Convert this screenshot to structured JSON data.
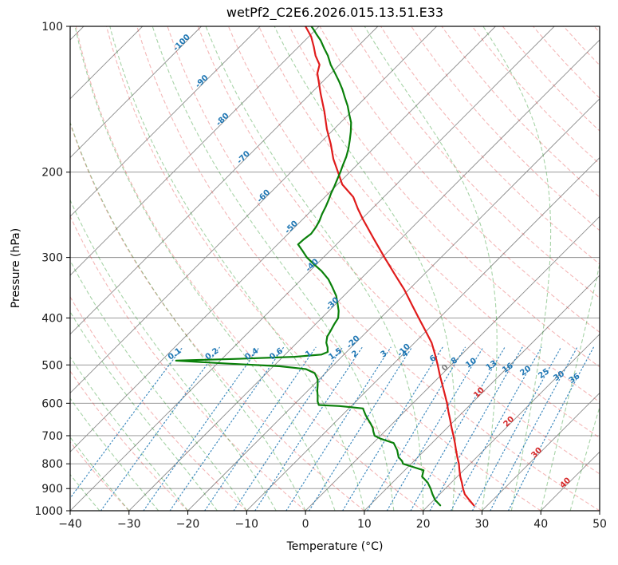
{
  "title": "wetPf2_C2E6.2026.015.13.51.E33",
  "axes": {
    "xlabel": "Temperature (°C)",
    "ylabel": "Pressure (hPa)",
    "xlim": [
      -40,
      50
    ],
    "pressure_lim": [
      1000,
      100
    ],
    "x_ticks": [
      -40,
      -30,
      -20,
      -10,
      0,
      10,
      20,
      30,
      40,
      50
    ],
    "p_ticks": [
      100,
      200,
      300,
      400,
      500,
      600,
      700,
      800,
      900,
      1000
    ]
  },
  "chart_data": {
    "type": "line",
    "subtype": "skew-t-log-p",
    "title": "wetPf2_C2E6.2026.015.13.51.E33",
    "xlabel": "Temperature (°C)",
    "ylabel": "Pressure (hPa)",
    "x_range": [
      -40,
      50
    ],
    "pressure_range": [
      100,
      1000
    ],
    "grid": "on",
    "series": [
      {
        "name": "temperature",
        "color": "#e01b1b",
        "units": [
          "hPa",
          "degC"
        ],
        "points": [
          [
            975,
            27.7
          ],
          [
            950,
            26.0
          ],
          [
            925,
            24.3
          ],
          [
            900,
            23.0
          ],
          [
            875,
            21.8
          ],
          [
            850,
            20.5
          ],
          [
            825,
            19.3
          ],
          [
            800,
            18.1
          ],
          [
            775,
            16.7
          ],
          [
            750,
            15.3
          ],
          [
            725,
            13.9
          ],
          [
            700,
            12.4
          ],
          [
            675,
            10.8
          ],
          [
            650,
            9.2
          ],
          [
            625,
            7.5
          ],
          [
            600,
            5.8
          ],
          [
            575,
            3.9
          ],
          [
            550,
            1.9
          ],
          [
            525,
            -0.2
          ],
          [
            500,
            -2.3
          ],
          [
            475,
            -4.6
          ],
          [
            450,
            -7.1
          ],
          [
            425,
            -10.2
          ],
          [
            400,
            -13.5
          ],
          [
            375,
            -17.0
          ],
          [
            350,
            -20.7
          ],
          [
            325,
            -25.0
          ],
          [
            300,
            -29.6
          ],
          [
            275,
            -34.5
          ],
          [
            250,
            -39.8
          ],
          [
            238,
            -42.4
          ],
          [
            225,
            -45.2
          ],
          [
            212,
            -49.2
          ],
          [
            200,
            -52.0
          ],
          [
            188,
            -55.0
          ],
          [
            175,
            -58.0
          ],
          [
            163,
            -61.2
          ],
          [
            150,
            -64.6
          ],
          [
            138,
            -68.2
          ],
          [
            125,
            -72.3
          ],
          [
            120,
            -73.4
          ],
          [
            115,
            -75.6
          ],
          [
            110,
            -77.5
          ],
          [
            105,
            -79.6
          ],
          [
            100,
            -82.3
          ]
        ]
      },
      {
        "name": "dewpoint",
        "color": "#0a800a",
        "units": [
          "hPa",
          "degC"
        ],
        "points": [
          [
            975,
            22.0
          ],
          [
            950,
            20.2
          ],
          [
            925,
            18.8
          ],
          [
            900,
            17.5
          ],
          [
            875,
            16.0
          ],
          [
            850,
            14.0
          ],
          [
            825,
            13.2
          ],
          [
            800,
            8.6
          ],
          [
            790,
            8.0
          ],
          [
            775,
            6.7
          ],
          [
            750,
            5.3
          ],
          [
            725,
            3.5
          ],
          [
            710,
            0.5
          ],
          [
            700,
            -1.0
          ],
          [
            685,
            -2.0
          ],
          [
            675,
            -2.6
          ],
          [
            660,
            -3.8
          ],
          [
            650,
            -4.7
          ],
          [
            635,
            -6.0
          ],
          [
            620,
            -7.2
          ],
          [
            615,
            -7.6
          ],
          [
            608,
            -12.0
          ],
          [
            605,
            -15.7
          ],
          [
            595,
            -16.5
          ],
          [
            580,
            -17.4
          ],
          [
            565,
            -18.4
          ],
          [
            550,
            -19.3
          ],
          [
            535,
            -20.3
          ],
          [
            520,
            -21.8
          ],
          [
            510,
            -24.0
          ],
          [
            503,
            -29.0
          ],
          [
            497,
            -38.0
          ],
          [
            490,
            -47.5
          ],
          [
            486,
            -38.0
          ],
          [
            481,
            -28.0
          ],
          [
            476,
            -23.8
          ],
          [
            470,
            -23.2
          ],
          [
            460,
            -24.0
          ],
          [
            450,
            -25.0
          ],
          [
            437,
            -25.9
          ],
          [
            425,
            -26.3
          ],
          [
            412,
            -26.8
          ],
          [
            400,
            -27.2
          ],
          [
            387,
            -28.3
          ],
          [
            373,
            -29.8
          ],
          [
            360,
            -31.3
          ],
          [
            345,
            -33.5
          ],
          [
            333,
            -35.4
          ],
          [
            320,
            -38.0
          ],
          [
            310,
            -40.4
          ],
          [
            300,
            -42.8
          ],
          [
            291,
            -44.6
          ],
          [
            282,
            -46.5
          ],
          [
            275,
            -46.4
          ],
          [
            268,
            -46.1
          ],
          [
            260,
            -46.4
          ],
          [
            252,
            -46.9
          ],
          [
            244,
            -47.6
          ],
          [
            236,
            -48.2
          ],
          [
            228,
            -48.9
          ],
          [
            221,
            -49.6
          ],
          [
            214,
            -50.2
          ],
          [
            207,
            -50.9
          ],
          [
            200,
            -51.6
          ],
          [
            194,
            -52.3
          ],
          [
            186,
            -53.2
          ],
          [
            179,
            -54.2
          ],
          [
            172,
            -55.4
          ],
          [
            165,
            -56.7
          ],
          [
            158,
            -58.2
          ],
          [
            152,
            -59.9
          ],
          [
            146,
            -61.6
          ],
          [
            140,
            -63.6
          ],
          [
            135,
            -65.3
          ],
          [
            130,
            -67.2
          ],
          [
            125,
            -69.3
          ],
          [
            120,
            -71.5
          ],
          [
            115,
            -73.5
          ],
          [
            111,
            -75.4
          ],
          [
            107,
            -77.3
          ],
          [
            104,
            -79.0
          ],
          [
            102,
            -80.1
          ],
          [
            100,
            -81.3
          ]
        ]
      }
    ],
    "background_lines": {
      "isotherms": {
        "from": -130,
        "to": 50,
        "step": 10,
        "color": "#8c8c8c"
      },
      "dry_adiabats": {
        "from": -60,
        "to": 190,
        "step": 10,
        "color": "#e03030",
        "opacity": 0.35,
        "style": "dashed"
      },
      "moist_adiabats": {
        "from": -40,
        "to": 45,
        "step": 5,
        "color": "#008000",
        "opacity": 0.35,
        "style": "dashed"
      },
      "mixing_ratio": {
        "values": [
          0.1,
          0.2,
          0.4,
          0.6,
          1,
          1.5,
          2,
          3,
          4,
          6,
          8,
          10,
          13,
          16,
          20,
          25,
          30,
          36
        ],
        "color": "#1f77b4",
        "opacity": 0.85,
        "style": "dotted",
        "p_bottom": 1000,
        "p_top": 460
      }
    },
    "line_labels": {
      "isotherms": [
        {
          "t": -100,
          "p": 109,
          "color": "#1f77b4"
        },
        {
          "t": -90,
          "p": 131,
          "color": "#1f77b4"
        },
        {
          "t": -80,
          "p": 157,
          "color": "#1f77b4"
        },
        {
          "t": -70,
          "p": 188,
          "color": "#1f77b4"
        },
        {
          "t": -60,
          "p": 226,
          "color": "#1f77b4"
        },
        {
          "t": -50,
          "p": 262,
          "color": "#1f77b4"
        },
        {
          "t": -40,
          "p": 314,
          "color": "#1f77b4"
        },
        {
          "t": -30,
          "p": 377,
          "color": "#1f77b4"
        },
        {
          "t": -20,
          "p": 452,
          "color": "#1f77b4"
        },
        {
          "t": -10,
          "p": 470,
          "color": "#1f77b4"
        },
        {
          "t": 0,
          "p": 511,
          "color": "#7f7f7f"
        },
        {
          "t": 10,
          "p": 575,
          "color": "#d62728"
        },
        {
          "t": 20,
          "p": 660,
          "color": "#d62728"
        },
        {
          "t": 30,
          "p": 765,
          "color": "#d62728"
        },
        {
          "t": 40,
          "p": 883,
          "color": "#d62728"
        }
      ],
      "mixing": [
        {
          "w": 0.1,
          "p": 479
        },
        {
          "w": 0.2,
          "p": 479
        },
        {
          "w": 0.4,
          "p": 479
        },
        {
          "w": 0.6,
          "p": 479
        },
        {
          "w": 1,
          "p": 479
        },
        {
          "w": 1.5,
          "p": 479
        },
        {
          "w": 2,
          "p": 479
        },
        {
          "w": 3,
          "p": 479
        },
        {
          "w": 4,
          "p": 479
        },
        {
          "w": 6,
          "p": 490
        },
        {
          "w": 8,
          "p": 495
        },
        {
          "w": 10,
          "p": 500
        },
        {
          "w": 13,
          "p": 506
        },
        {
          "w": 16,
          "p": 512
        },
        {
          "w": 20,
          "p": 519
        },
        {
          "w": 25,
          "p": 526
        },
        {
          "w": 30,
          "p": 532
        },
        {
          "w": 36,
          "p": 538
        }
      ]
    }
  }
}
